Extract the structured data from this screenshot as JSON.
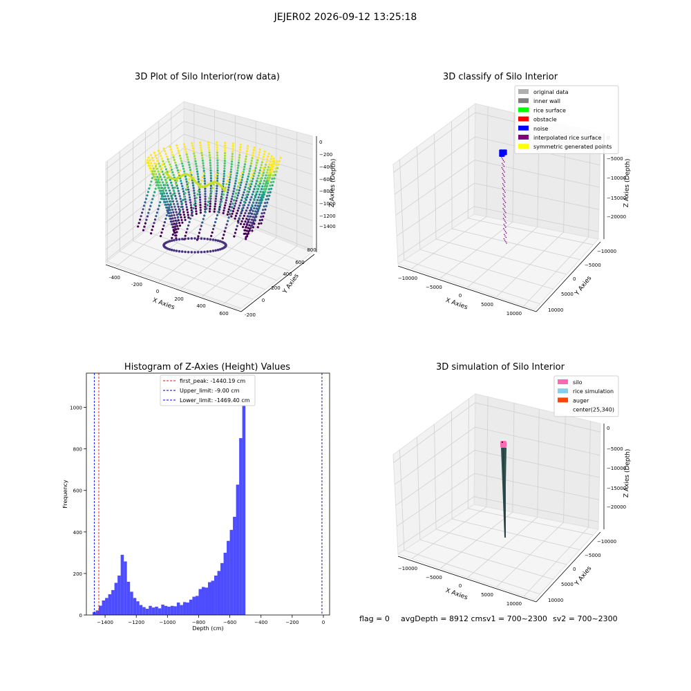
{
  "figure": {
    "suptitle": "JEJER02 2026-09-12 13:25:18"
  },
  "chart_data": [
    {
      "type": "scatter3d",
      "title": "3D Plot of Silo Interior(row data)",
      "xlabel": "X Axies",
      "ylabel": "Y Axies",
      "zlabel": "Z Axies (Depth)",
      "x_ticks": [
        "-400",
        "-200",
        "0",
        "200",
        "400",
        "600"
      ],
      "y_ticks": [
        "-200",
        "0",
        "200",
        "400",
        "600",
        "800"
      ],
      "z_ticks": [
        "0",
        "−200",
        "−400",
        "−600",
        "−800",
        "−1000",
        "−1200",
        "−1400"
      ],
      "xlim": [
        -480,
        680
      ],
      "ylim": [
        -230,
        900
      ],
      "zlim": [
        -1500,
        0
      ],
      "colormap": "viridis",
      "grid": true
    },
    {
      "type": "scatter3d",
      "title": "3D classify of Silo Interior",
      "xlabel": "X Axies",
      "ylabel": "Y Axies",
      "zlabel": "Z Axies (Depth)",
      "x_ticks": [
        "−10000",
        "−5000",
        "0",
        "5000",
        "10000"
      ],
      "y_ticks": [
        "−10000",
        "−5000",
        "0",
        "5000",
        "10000"
      ],
      "z_ticks": [
        "0",
        "−5000",
        "−10000",
        "−15000",
        "−20000"
      ],
      "legend_position": "top-right",
      "legend": [
        {
          "name": "original data",
          "color": "#b0b0b0"
        },
        {
          "name": "inner wall",
          "color": "#808080"
        },
        {
          "name": "rice surface",
          "color": "#00ff00"
        },
        {
          "name": "obstacle",
          "color": "#ff0000"
        },
        {
          "name": "noise",
          "color": "#0000ff"
        },
        {
          "name": "interpolated rice surface",
          "color": "#800080"
        },
        {
          "name": "symmetric generated points",
          "color": "#ffff00"
        }
      ],
      "grid": true
    },
    {
      "type": "bar",
      "title": "Histogram of Z-Axies (Height) Values",
      "xlabel": "Depth (cm)",
      "ylabel": "Frequency",
      "bar_color": "#4d4dff",
      "bin_start": -1480,
      "bin_width": 20,
      "values": [
        14,
        22,
        45,
        70,
        82,
        100,
        120,
        155,
        190,
        290,
        258,
        160,
        112,
        82,
        66,
        48,
        38,
        30,
        44,
        36,
        40,
        32,
        50,
        44,
        40,
        44,
        42,
        60,
        48,
        62,
        60,
        74,
        88,
        92,
        125,
        135,
        132,
        158,
        165,
        190,
        212,
        250,
        300,
        357,
        410,
        473,
        628,
        852,
        1110
      ],
      "xlim": [
        -1520,
        40
      ],
      "ylim": [
        0,
        1165
      ],
      "x_ticks": [
        -1400,
        -1200,
        -1000,
        -800,
        -600,
        -400,
        -200,
        0
      ],
      "y_ticks": [
        0,
        200,
        400,
        600,
        800,
        1000
      ],
      "vlines": [
        {
          "label": "first_peak: -1440.19 cm",
          "x": -1440.19,
          "color": "#ff0000"
        },
        {
          "label": "Upper_limit: -9.00 cm",
          "x": -9.0,
          "color": "#00008b"
        },
        {
          "label": "Lower_limit: -1469.40 cm",
          "x": -1469.4,
          "color": "#0000ff"
        }
      ],
      "legend_position": "top-center",
      "grid": false
    },
    {
      "type": "scatter3d",
      "title": "3D simulation of Silo Interior",
      "xlabel": "X Axies",
      "ylabel": "Y Axies",
      "zlabel": "Z Axies (Depth)",
      "x_ticks": [
        "−10000",
        "−5000",
        "0",
        "5000",
        "10000"
      ],
      "y_ticks": [
        "−10000",
        "−5000",
        "0",
        "5000",
        "10000"
      ],
      "z_ticks": [
        "0",
        "−5000",
        "−10000",
        "−15000",
        "−20000"
      ],
      "legend_position": "top-right",
      "legend": [
        {
          "name": "silo",
          "color": "#ff69b4"
        },
        {
          "name": "rice simulation",
          "color": "#87ceeb"
        },
        {
          "name": "auger",
          "color": "#ff4500"
        },
        {
          "name": "center(25,340)",
          "color": ""
        }
      ],
      "grid": true
    }
  ],
  "footer": {
    "flag": "flag = 0",
    "avg": "avgDepth = 8912 cmsv1 = 700~2300",
    "sv2": "sv2 = 700~2300"
  }
}
